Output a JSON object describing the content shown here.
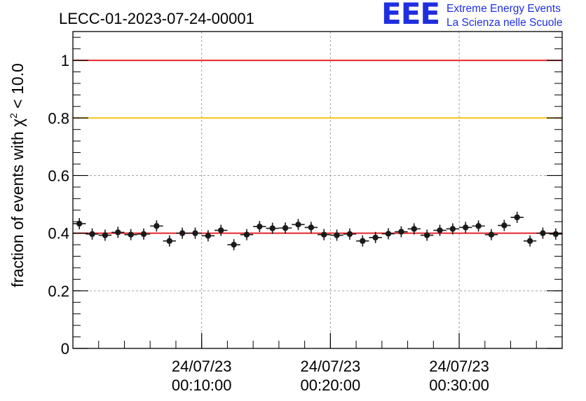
{
  "chart_data": {
    "type": "scatter",
    "title": "LECC-01-2023-07-24-00001",
    "ylabel_prefix": "fraction of events with ",
    "ylabel_chi": "χ",
    "ylabel_sup": "2",
    "ylabel_suffix": " < 10.0",
    "xlabel": "",
    "ylim": [
      0,
      1.1
    ],
    "xlim_minutes": [
      0,
      38
    ],
    "yticks": [
      "0",
      "0.2",
      "0.4",
      "0.6",
      "0.8",
      "1"
    ],
    "xticks": [
      {
        "minute": 10,
        "date": "24/07/23",
        "time": "00:10:00"
      },
      {
        "minute": 20,
        "date": "24/07/23",
        "time": "00:20:00"
      },
      {
        "minute": 30,
        "date": "24/07/23",
        "time": "00:30:00"
      }
    ],
    "reference_lines": [
      {
        "y": 1.0,
        "color": "#e8262a"
      },
      {
        "y": 0.8,
        "color": "#f5c518"
      },
      {
        "y": 0.4,
        "color": "#e8262a"
      }
    ],
    "grid": true,
    "marker_color": "#1a1a1a",
    "points": [
      {
        "x": 0.5,
        "y": 0.433
      },
      {
        "x": 1.5,
        "y": 0.397
      },
      {
        "x": 2.5,
        "y": 0.393
      },
      {
        "x": 3.5,
        "y": 0.403
      },
      {
        "x": 4.5,
        "y": 0.395
      },
      {
        "x": 5.5,
        "y": 0.397
      },
      {
        "x": 6.5,
        "y": 0.425
      },
      {
        "x": 7.5,
        "y": 0.373
      },
      {
        "x": 8.5,
        "y": 0.4
      },
      {
        "x": 9.5,
        "y": 0.4
      },
      {
        "x": 10.5,
        "y": 0.391
      },
      {
        "x": 11.5,
        "y": 0.41
      },
      {
        "x": 12.5,
        "y": 0.36
      },
      {
        "x": 13.5,
        "y": 0.395
      },
      {
        "x": 14.5,
        "y": 0.423
      },
      {
        "x": 15.5,
        "y": 0.417
      },
      {
        "x": 16.5,
        "y": 0.418
      },
      {
        "x": 17.5,
        "y": 0.43
      },
      {
        "x": 18.5,
        "y": 0.42
      },
      {
        "x": 19.5,
        "y": 0.395
      },
      {
        "x": 20.5,
        "y": 0.393
      },
      {
        "x": 21.5,
        "y": 0.397
      },
      {
        "x": 22.5,
        "y": 0.373
      },
      {
        "x": 23.5,
        "y": 0.385
      },
      {
        "x": 24.5,
        "y": 0.398
      },
      {
        "x": 25.5,
        "y": 0.405
      },
      {
        "x": 26.5,
        "y": 0.415
      },
      {
        "x": 27.5,
        "y": 0.393
      },
      {
        "x": 28.5,
        "y": 0.41
      },
      {
        "x": 29.5,
        "y": 0.415
      },
      {
        "x": 30.5,
        "y": 0.42
      },
      {
        "x": 31.5,
        "y": 0.425
      },
      {
        "x": 32.5,
        "y": 0.395
      },
      {
        "x": 33.5,
        "y": 0.427
      },
      {
        "x": 34.5,
        "y": 0.455
      },
      {
        "x": 35.5,
        "y": 0.373
      },
      {
        "x": 36.5,
        "y": 0.4
      },
      {
        "x": 37.5,
        "y": 0.397
      }
    ]
  },
  "logo": {
    "mark": "EEE",
    "line1": "Extreme Energy Events",
    "line2": "La Scienza nelle Scuole",
    "color": "#1f2fe0"
  }
}
